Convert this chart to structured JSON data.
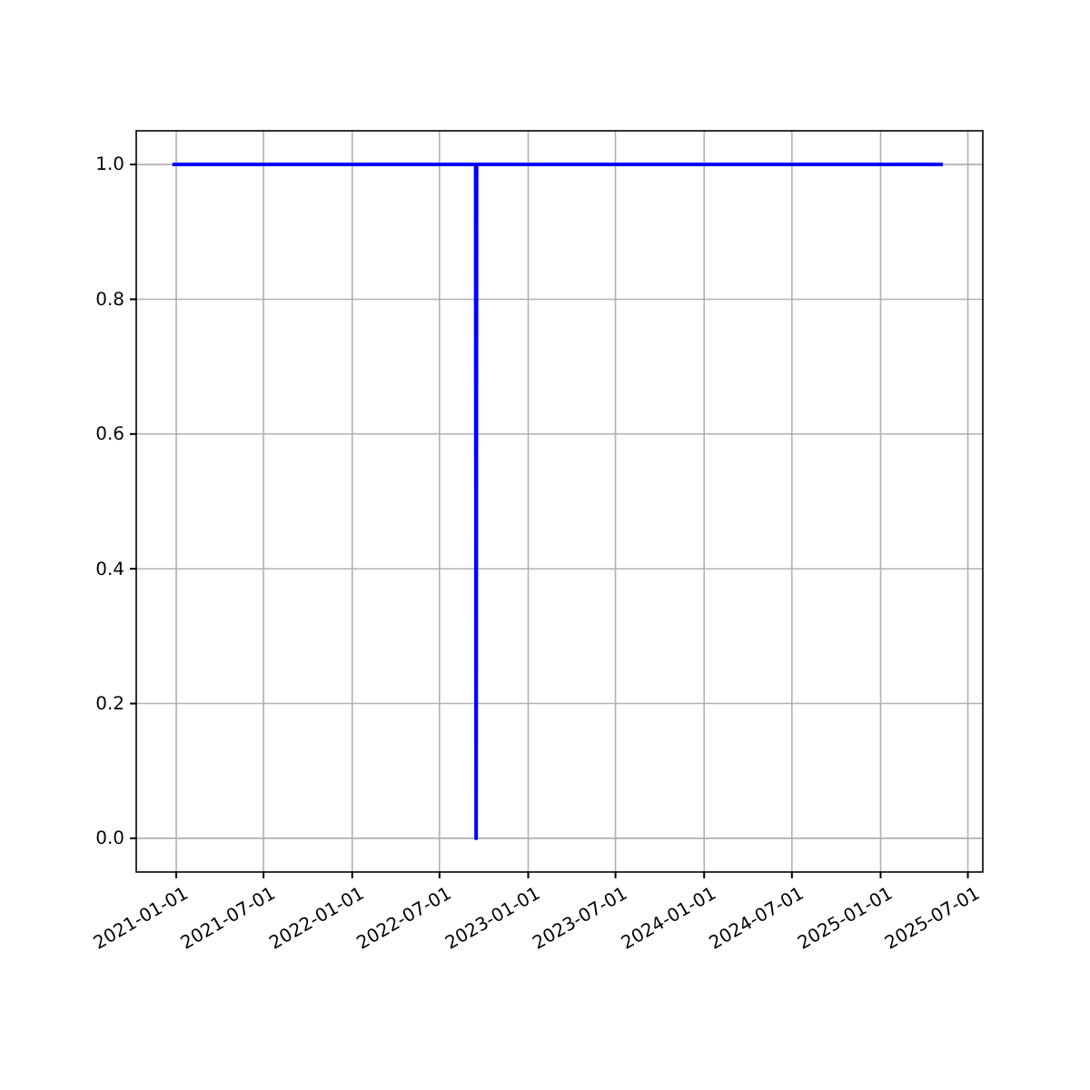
{
  "chart_data": {
    "type": "line",
    "x": [
      "2020-12-24",
      "2022-09-14",
      "2022-09-15",
      "2022-09-16",
      "2025-05-10"
    ],
    "series": [
      {
        "color": "#0000ff",
        "values": [
          1,
          1,
          0,
          1,
          1
        ]
      }
    ],
    "xlim": [
      "2020-10-10",
      "2025-08-01"
    ],
    "xticks": [
      "2021-01-01",
      "2021-07-01",
      "2022-01-01",
      "2022-07-01",
      "2023-01-01",
      "2023-07-01",
      "2024-01-01",
      "2024-07-01",
      "2025-01-01",
      "2025-07-01"
    ],
    "ylim": [
      -0.05,
      1.05
    ],
    "yticks": [
      {
        "value": 0,
        "label": "0.0"
      },
      {
        "value": 0.2,
        "label": "0.2"
      },
      {
        "value": 0.4,
        "label": "0.4"
      },
      {
        "value": 0.6,
        "label": "0.6"
      },
      {
        "value": 0.8,
        "label": "0.8"
      },
      {
        "value": 1,
        "label": "1.0"
      }
    ],
    "grid": true,
    "line_style": "solid"
  }
}
